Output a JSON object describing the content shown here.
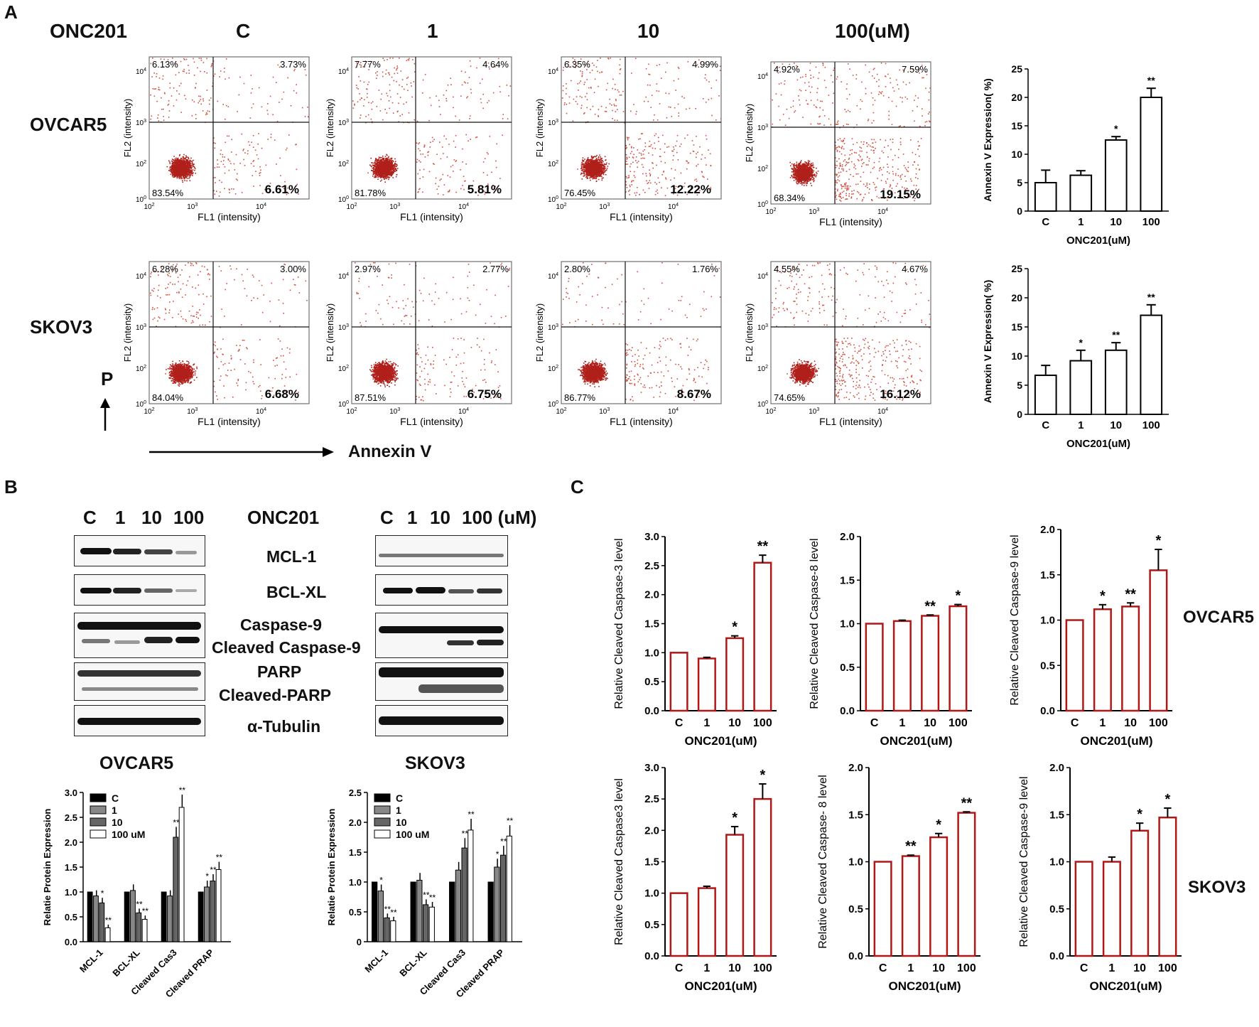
{
  "panel_labels": {
    "a": "A",
    "b": "B",
    "c": "C"
  },
  "panel_a": {
    "drug": "ONC201",
    "dose_headers": [
      "C",
      "1",
      "10",
      "100(uM)"
    ],
    "rows": [
      "OVCAR5",
      "SKOV3"
    ],
    "y_arrow_label": "P",
    "x_arrow_label": "Annexin V"
  },
  "panel_b": {
    "blot_headers_left": [
      "C",
      "1",
      "10",
      "100"
    ],
    "blot_headers_right": [
      "C",
      "1",
      "10",
      "100 (uM)"
    ],
    "drug": "ONC201",
    "proteins": [
      "MCL-1",
      "BCL-XL",
      "Caspase-9",
      "Cleaved Caspase-9",
      "PARP",
      "Cleaved-PARP",
      "α-Tubulin"
    ],
    "quant_titles": [
      "OVCAR5",
      "SKOV3"
    ]
  },
  "panel_c": {
    "row_labels": [
      "OVCAR5",
      "SKOV3"
    ]
  },
  "chart_data": [
    {
      "id": "flow-ov-c",
      "type": "scatter",
      "title": "OVCAR5 C",
      "xlabel": "FL1 (intensity)",
      "ylabel": "FL2 (intensity)",
      "quadrants": {
        "ul": "6.13%",
        "ur": "3.73%",
        "ll": "83.54%",
        "lr": "6.61%"
      }
    },
    {
      "id": "flow-ov-1",
      "type": "scatter",
      "title": "OVCAR5 1",
      "xlabel": "FL1 (intensity)",
      "ylabel": "FL2 (intensity)",
      "quadrants": {
        "ul": "7.77%",
        "ur": "4.64%",
        "ll": "81.78%",
        "lr": "5.81%"
      }
    },
    {
      "id": "flow-ov-10",
      "type": "scatter",
      "title": "OVCAR5 10",
      "xlabel": "FL1 (intensity)",
      "ylabel": "FL2 (intensity)",
      "quadrants": {
        "ul": "6.35%",
        "ur": "4.99%",
        "ll": "76.45%",
        "lr": "12.22%"
      }
    },
    {
      "id": "flow-ov-100",
      "type": "scatter",
      "title": "OVCAR5 100",
      "xlabel": "FL1 (intensity)",
      "ylabel": "FL2 (intensity)",
      "quadrants": {
        "ul": "4.92%",
        "ur": "7.59%",
        "ll": "68.34%",
        "lr": "19.15%"
      }
    },
    {
      "id": "flow-sk-c",
      "type": "scatter",
      "title": "SKOV3 C",
      "xlabel": "FL1 (intensity)",
      "ylabel": "FL2 (intensity)",
      "quadrants": {
        "ul": "6.28%",
        "ur": "3.00%",
        "ll": "84.04%",
        "lr": "6.68%"
      }
    },
    {
      "id": "flow-sk-1",
      "type": "scatter",
      "title": "SKOV3 1",
      "xlabel": "FL1 (intensity)",
      "ylabel": "FL2 (intensity)",
      "quadrants": {
        "ul": "2.97%",
        "ur": "2.77%",
        "ll": "87.51%",
        "lr": "6.75%"
      }
    },
    {
      "id": "flow-sk-10",
      "type": "scatter",
      "title": "SKOV3 10",
      "xlabel": "FL1 (intensity)",
      "ylabel": "FL2 (intensity)",
      "quadrants": {
        "ul": "2.80%",
        "ur": "1.76%",
        "ll": "86.77%",
        "lr": "8.67%"
      }
    },
    {
      "id": "flow-sk-100",
      "type": "scatter",
      "title": "SKOV3 100",
      "xlabel": "FL1 (intensity)",
      "ylabel": "FL2 (intensity)",
      "quadrants": {
        "ul": "4.55%",
        "ur": "4.67%",
        "ll": "74.65%",
        "lr": "16.12%"
      }
    },
    {
      "id": "annexin-ov",
      "type": "bar",
      "categories": [
        "C",
        "1",
        "10",
        "100"
      ],
      "values": [
        5,
        6.3,
        12.5,
        20
      ],
      "errors": [
        2.2,
        0.8,
        0.6,
        1.6
      ],
      "sig": [
        "",
        "",
        "*",
        "**"
      ],
      "ylabel": "Annexin V Expression( %)",
      "xlabel": "ONC201(uM)",
      "ylim": [
        0,
        25
      ],
      "yticks": [
        0,
        5,
        10,
        15,
        20,
        25
      ]
    },
    {
      "id": "annexin-sk",
      "type": "bar",
      "categories": [
        "C",
        "1",
        "10",
        "100"
      ],
      "values": [
        6.7,
        9.2,
        11,
        17
      ],
      "errors": [
        1.7,
        1.8,
        1.3,
        1.8
      ],
      "sig": [
        "",
        "*",
        "**",
        "**"
      ],
      "ylabel": "Annexin V Expression( %)",
      "xlabel": "ONC201(uM)",
      "ylim": [
        0,
        25
      ],
      "yticks": [
        0,
        5,
        10,
        15,
        20,
        25
      ]
    },
    {
      "id": "quant-ov",
      "type": "bar",
      "title": "OVCAR5",
      "categories": [
        "MCL-1",
        "BCL-XL",
        "Cleaved Cas3",
        "Cleaved PRAP"
      ],
      "series": [
        {
          "name": "C",
          "values": [
            1,
            1,
            1,
            1
          ]
        },
        {
          "name": "1",
          "values": [
            0.92,
            1.03,
            0.92,
            1.1
          ]
        },
        {
          "name": "10",
          "values": [
            0.78,
            0.58,
            2.1,
            1.22
          ]
        },
        {
          "name": "100 uM",
          "values": [
            0.28,
            0.45,
            2.7,
            1.45
          ]
        }
      ],
      "ylabel": "Relatie Protein Expression",
      "ylim": [
        0,
        3
      ],
      "yticks": [
        "0.0",
        "0.5",
        "1.0",
        "1.5",
        "2.0",
        "2.5",
        "3.0"
      ],
      "sig": [
        [
          "",
          "",
          "*",
          "**"
        ],
        [
          "",
          "",
          "**",
          "**"
        ],
        [
          "",
          "",
          "**",
          "**"
        ],
        [
          "",
          "*",
          "**",
          "**"
        ]
      ]
    },
    {
      "id": "quant-sk",
      "type": "bar",
      "title": "SKOV3",
      "categories": [
        "MCL-1",
        "BCL-XL",
        "Cleaved Cas3",
        "Cleaved PRAP"
      ],
      "series": [
        {
          "name": "C",
          "values": [
            1,
            1,
            1,
            1
          ]
        },
        {
          "name": "1",
          "values": [
            0.85,
            1.03,
            1.2,
            1.25
          ]
        },
        {
          "name": "10",
          "values": [
            0.4,
            0.62,
            1.57,
            1.45
          ]
        },
        {
          "name": "100 uM",
          "values": [
            0.35,
            0.58,
            1.87,
            1.77
          ]
        }
      ],
      "ylabel": "Relatie Protein Expression",
      "ylim": [
        0,
        2.5
      ],
      "yticks": [
        "0",
        "0.5",
        "1.0",
        "1.5",
        "2.0",
        "2.5"
      ],
      "sig": [
        [
          "",
          "*",
          "**",
          "**"
        ],
        [
          "",
          "",
          "**",
          "**"
        ],
        [
          "",
          "",
          "**",
          "**"
        ],
        [
          "",
          "*",
          "**",
          "**"
        ]
      ]
    },
    {
      "id": "c-ov-cas3",
      "type": "bar",
      "categories": [
        "C",
        "1",
        "10",
        "100"
      ],
      "values": [
        1,
        0.9,
        1.25,
        2.55
      ],
      "errors": [
        0,
        0.02,
        0.04,
        0.13
      ],
      "sig": [
        "",
        "",
        "*",
        "**"
      ],
      "ylabel": "Relative Cleaved Caspase-3  level",
      "xlabel": "ONC201(uM)",
      "ylim": [
        0,
        3
      ],
      "yticks": [
        "0.0",
        "0.5",
        "1.0",
        "1.5",
        "2.0",
        "2.5",
        "3.0"
      ]
    },
    {
      "id": "c-ov-cas8",
      "type": "bar",
      "categories": [
        "C",
        "1",
        "10",
        "100"
      ],
      "values": [
        1,
        1.03,
        1.09,
        1.2
      ],
      "errors": [
        0,
        0.01,
        0.01,
        0.02
      ],
      "sig": [
        "",
        "",
        "**",
        "*"
      ],
      "ylabel": "Relative Cleaved Caspase-8  level",
      "xlabel": "ONC201(uM)",
      "ylim": [
        0,
        2
      ],
      "yticks": [
        "0.0",
        "0.5",
        "1.0",
        "1.5",
        "2.0"
      ]
    },
    {
      "id": "c-ov-cas9",
      "type": "bar",
      "categories": [
        "C",
        "1",
        "10",
        "100"
      ],
      "values": [
        1,
        1.12,
        1.15,
        1.55
      ],
      "errors": [
        0,
        0.05,
        0.04,
        0.23
      ],
      "sig": [
        "",
        "*",
        "**",
        "*"
      ],
      "ylabel": "Relative Cleaved Caspase-9 level",
      "xlabel": "ONC201(uM)",
      "ylim": [
        0,
        2
      ],
      "yticks": [
        "0.0",
        "0.5",
        "1.0",
        "1.5",
        "2.0"
      ]
    },
    {
      "id": "c-sk-cas3",
      "type": "bar",
      "categories": [
        "C",
        "1",
        "10",
        "100"
      ],
      "values": [
        1,
        1.08,
        1.93,
        2.5
      ],
      "errors": [
        0,
        0.03,
        0.13,
        0.24
      ],
      "sig": [
        "",
        "",
        "*",
        "*"
      ],
      "ylabel": "Relative Cleaved Caspase3  level",
      "xlabel": "ONC201(uM)",
      "ylim": [
        0,
        3
      ],
      "yticks": [
        "0.0",
        "0.5",
        "1.0",
        "1.5",
        "2.0",
        "2.5",
        "3.0"
      ]
    },
    {
      "id": "c-sk-cas8",
      "type": "bar",
      "categories": [
        "C",
        "1",
        "10",
        "100"
      ],
      "values": [
        1,
        1.06,
        1.26,
        1.52
      ],
      "errors": [
        0,
        0.01,
        0.04,
        0.01
      ],
      "sig": [
        "",
        "**",
        "*",
        "**"
      ],
      "ylabel": "Relative Cleaved Caspase- 8  level",
      "xlabel": "ONC201(uM)",
      "ylim": [
        0,
        2
      ],
      "yticks": [
        "0.0",
        "0.5",
        "1.0",
        "1.5",
        "2.0"
      ]
    },
    {
      "id": "c-sk-cas9",
      "type": "bar",
      "categories": [
        "C",
        "1",
        "10",
        "100"
      ],
      "values": [
        1,
        1,
        1.33,
        1.47
      ],
      "errors": [
        0,
        0.05,
        0.08,
        0.1
      ],
      "sig": [
        "",
        "",
        "*",
        "*"
      ],
      "ylabel": "Relative Cleaved  Caspase-9 level",
      "xlabel": "ONC201(uM)",
      "ylim": [
        0,
        2
      ],
      "yticks": [
        "0.0",
        "0.5",
        "1.0",
        "1.5",
        "2.0"
      ]
    }
  ]
}
